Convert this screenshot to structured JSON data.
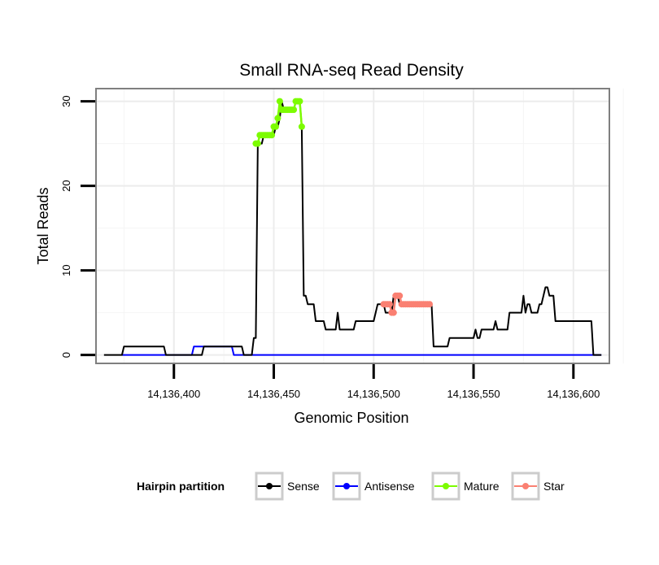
{
  "chart_data": {
    "type": "line",
    "title": "Small RNA-seq Read Density",
    "xlabel": "Genomic Position",
    "ylabel": "Total Reads",
    "xlim": [
      14136361,
      14136618
    ],
    "ylim": [
      -1,
      31.5
    ],
    "x_ticks": [
      14136400,
      14136450,
      14136500,
      14136550,
      14136600
    ],
    "x_tick_labels": [
      "14,136,400",
      "14,136,450",
      "14,136,500",
      "14,136,550",
      "14,136,600"
    ],
    "y_ticks": [
      0,
      10,
      20,
      30
    ],
    "y_tick_labels": [
      "0",
      "10",
      "20",
      "30"
    ],
    "grid": true,
    "legend": {
      "title": "Hairpin partition",
      "position": "bottom",
      "entries": [
        {
          "label": "Sense",
          "color": "#000000"
        },
        {
          "label": "Antisense",
          "color": "#0000ff"
        },
        {
          "label": "Mature",
          "color": "#7cfc00"
        },
        {
          "label": "Star",
          "color": "#fa8072"
        }
      ]
    },
    "series": [
      {
        "name": "Sense",
        "color": "#000000",
        "x": [
          14136365,
          14136374,
          14136375,
          14136395,
          14136396,
          14136414,
          14136415,
          14136434,
          14136435,
          14136439,
          14136440,
          14136441,
          14136442,
          14136444,
          14136445,
          14136450,
          14136451,
          14136452,
          14136453,
          14136454,
          14136455,
          14136460,
          14136461,
          14136463,
          14136464,
          14136465,
          14136466,
          14136467,
          14136468,
          14136470,
          14136471,
          14136475,
          14136476,
          14136478,
          14136479,
          14136481,
          14136482,
          14136483,
          14136484,
          14136485,
          14136486,
          14136490,
          14136491,
          14136495,
          14136496,
          14136500,
          14136501,
          14136502,
          14136503,
          14136505,
          14136506,
          14136509,
          14136510,
          14136512,
          14136513,
          14136527,
          14136528,
          14136529,
          14136530,
          14136537,
          14136538,
          14136550,
          14136551,
          14136552,
          14136553,
          14136554,
          14136555,
          14136560,
          14136561,
          14136562,
          14136563,
          14136567,
          14136568,
          14136574,
          14136575,
          14136576,
          14136577,
          14136578,
          14136579,
          14136580,
          14136581,
          14136582,
          14136583,
          14136584,
          14136585,
          14136586,
          14136587,
          14136588,
          14136589,
          14136590,
          14136591,
          14136592,
          14136593,
          14136602,
          14136603,
          14136609,
          14136610,
          14136614
        ],
        "y": [
          0,
          0,
          1,
          1,
          0,
          0,
          1,
          1,
          0,
          0,
          2,
          2,
          25,
          25,
          26,
          26,
          27,
          27,
          28,
          30,
          29,
          29,
          30,
          30,
          27,
          7,
          7,
          6,
          6,
          6,
          4,
          4,
          3,
          3,
          3,
          3,
          5,
          3,
          3,
          3,
          3,
          3,
          4,
          4,
          4,
          4,
          5,
          6,
          6,
          6,
          5,
          5,
          7,
          7,
          6,
          6,
          6,
          6,
          1,
          1,
          2,
          2,
          3,
          2,
          2,
          3,
          3,
          3,
          4,
          3,
          3,
          3,
          5,
          5,
          7,
          5,
          6,
          6,
          5,
          5,
          5,
          5,
          6,
          6,
          7,
          8,
          8,
          7,
          7,
          7,
          4,
          4,
          4,
          4,
          4,
          4,
          0,
          0
        ]
      },
      {
        "name": "Antisense",
        "color": "#0000ff",
        "x": [
          14136374,
          14136409,
          14136410,
          14136429,
          14136430,
          14136614
        ],
        "y": [
          0,
          0,
          1,
          1,
          0,
          0
        ]
      },
      {
        "name": "Mature",
        "color": "#7cfc00",
        "x": [
          14136441,
          14136442,
          14136443,
          14136444,
          14136445,
          14136446,
          14136447,
          14136448,
          14136449,
          14136450,
          14136451,
          14136452,
          14136453,
          14136454,
          14136455,
          14136456,
          14136457,
          14136458,
          14136459,
          14136460,
          14136461,
          14136462,
          14136463,
          14136464
        ],
        "y": [
          25,
          25,
          26,
          26,
          26,
          26,
          26,
          26,
          26,
          27,
          27,
          28,
          30,
          29,
          29,
          29,
          29,
          29,
          29,
          29,
          30,
          30,
          30,
          27
        ]
      },
      {
        "name": "Star",
        "color": "#fa8072",
        "x": [
          14136505,
          14136506,
          14136507,
          14136508,
          14136509,
          14136510,
          14136511,
          14136512,
          14136513,
          14136514,
          14136515,
          14136516,
          14136517,
          14136518,
          14136519,
          14136520,
          14136521,
          14136522,
          14136523,
          14136524,
          14136525,
          14136526,
          14136527,
          14136528
        ],
        "y": [
          6,
          6,
          6,
          6,
          5,
          5,
          7,
          7,
          7,
          6,
          6,
          6,
          6,
          6,
          6,
          6,
          6,
          6,
          6,
          6,
          6,
          6,
          6,
          6
        ]
      }
    ]
  }
}
